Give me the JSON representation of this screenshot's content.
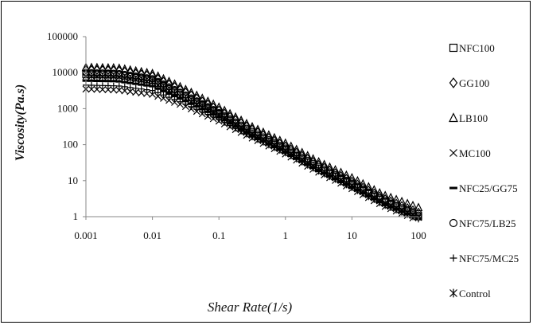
{
  "chart_data": {
    "type": "scatter",
    "xlabel": "Shear Rate(1/s)",
    "ylabel": "Viscosity(Pa.s)",
    "xscale": "log",
    "yscale": "log",
    "xlim": [
      0.001,
      100
    ],
    "ylim": [
      1,
      100000
    ],
    "x_ticks": [
      "0.001",
      "0.01",
      "0.1",
      "1",
      "10",
      "100"
    ],
    "y_ticks": [
      "1",
      "10",
      "100",
      "1000",
      "10000",
      "100000"
    ],
    "grid": false,
    "legend_position": "right",
    "series": [
      {
        "name": "NFC100",
        "marker": "square",
        "x": [
          0.001,
          0.003,
          0.01,
          0.03,
          0.1,
          0.3,
          1,
          3,
          10,
          30,
          100
        ],
        "y": [
          9000,
          8800,
          6000,
          2200,
          700,
          220,
          70,
          23,
          7.5,
          2.6,
          1
        ]
      },
      {
        "name": "GG100",
        "marker": "diamond",
        "x": [
          0.001,
          0.003,
          0.01,
          0.03,
          0.1,
          0.3,
          1,
          3,
          10,
          30,
          100
        ],
        "y": [
          12000,
          11500,
          8000,
          3000,
          900,
          280,
          90,
          29,
          9.5,
          3.2,
          1.3
        ]
      },
      {
        "name": "LB100",
        "marker": "triangle",
        "x": [
          0.001,
          0.003,
          0.01,
          0.03,
          0.1,
          0.3,
          1,
          3,
          10,
          30,
          100
        ],
        "y": [
          14000,
          13500,
          9500,
          3600,
          1100,
          330,
          110,
          35,
          12,
          4,
          1.8
        ]
      },
      {
        "name": "MC100",
        "marker": "x",
        "x": [
          0.001,
          0.003,
          0.01,
          0.03,
          0.1,
          0.3,
          1,
          3,
          10,
          30,
          100
        ],
        "y": [
          3500,
          3300,
          2500,
          1200,
          450,
          160,
          55,
          18,
          6,
          2,
          0.8
        ]
      },
      {
        "name": "NFC25/GG75",
        "marker": "dash",
        "x": [
          0.001,
          0.003,
          0.01,
          0.03,
          0.1,
          0.3,
          1,
          3,
          10,
          30,
          100
        ],
        "y": [
          6000,
          5800,
          4200,
          1700,
          580,
          190,
          62,
          20,
          6.8,
          2.3,
          0.9
        ]
      },
      {
        "name": "NFC75/LB25",
        "marker": "circle",
        "x": [
          0.001,
          0.003,
          0.01,
          0.03,
          0.1,
          0.3,
          1,
          3,
          10,
          30,
          100
        ],
        "y": [
          10000,
          9500,
          6800,
          2500,
          780,
          245,
          80,
          26,
          8.5,
          2.9,
          1.1
        ]
      },
      {
        "name": "NFC75/MC25",
        "marker": "plus",
        "x": [
          0.001,
          0.003,
          0.01,
          0.03,
          0.1,
          0.3,
          1,
          3,
          10,
          30,
          100
        ],
        "y": [
          4500,
          4300,
          3200,
          1400,
          500,
          170,
          58,
          19,
          6.3,
          2.1,
          0.85
        ]
      },
      {
        "name": "Control",
        "marker": "asterisk",
        "x": [
          0.001,
          0.003,
          0.01,
          0.03,
          0.1,
          0.3,
          1,
          3,
          10,
          30,
          100
        ],
        "y": [
          8000,
          7700,
          5500,
          2000,
          650,
          205,
          67,
          22,
          7.2,
          2.4,
          0.95
        ]
      }
    ]
  }
}
